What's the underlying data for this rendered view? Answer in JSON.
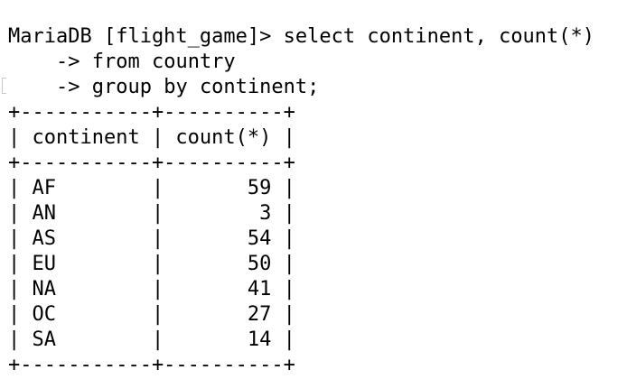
{
  "terminal": {
    "prompt": "MariaDB [flight_game]>",
    "command_line1": "select continent, count(*)",
    "continuation_prompt": "    ->",
    "command_line2": "from country",
    "command_line3": "group by continent;"
  },
  "result_table": {
    "border": "+-----------+----------+",
    "header_row": "| continent | count(*) |",
    "rows": [
      "| AF        |       59 |",
      "| AN        |        3 |",
      "| AS        |       54 |",
      "| EU        |       50 |",
      "| NA        |       41 |",
      "| OC        |       27 |",
      "| SA        |       14 |"
    ],
    "columns": [
      "continent",
      "count(*)"
    ],
    "data": [
      {
        "continent": "AF",
        "count": "59"
      },
      {
        "continent": "AN",
        "count": "3"
      },
      {
        "continent": "AS",
        "count": "54"
      },
      {
        "continent": "EU",
        "count": "50"
      },
      {
        "continent": "NA",
        "count": "41"
      },
      {
        "continent": "OC",
        "count": "27"
      },
      {
        "continent": "SA",
        "count": "14"
      }
    ]
  }
}
